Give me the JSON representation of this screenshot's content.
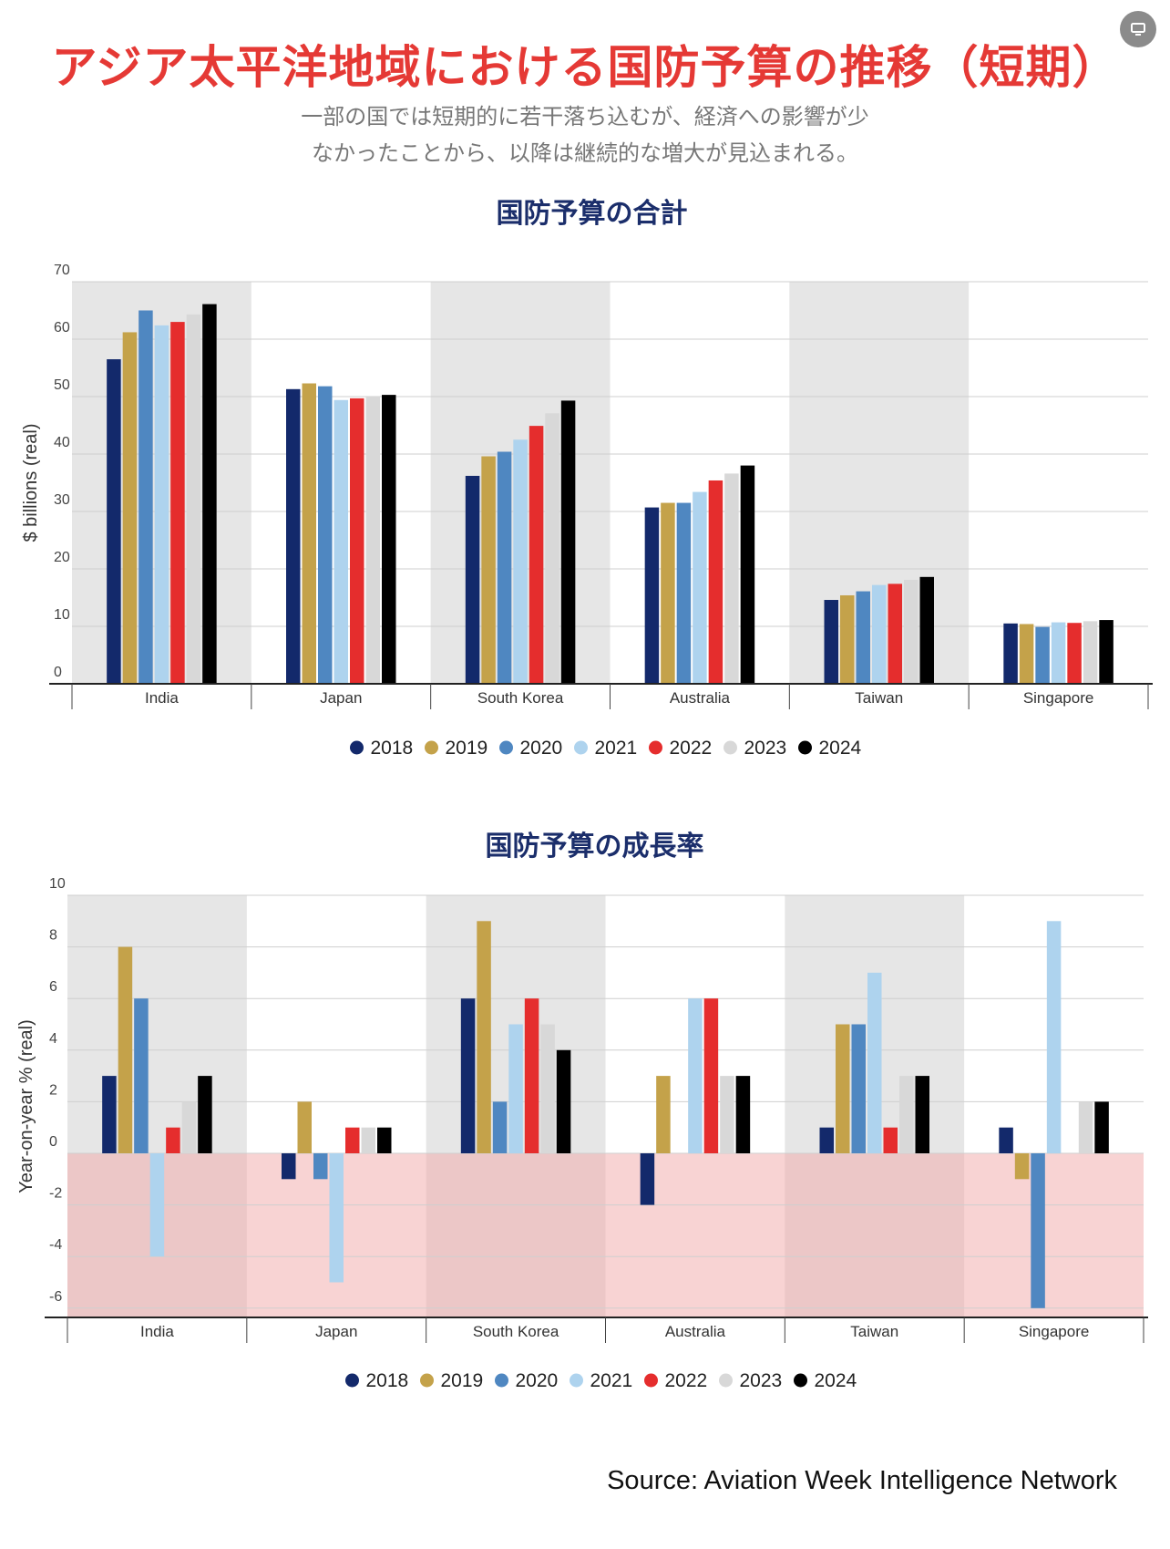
{
  "header": {
    "title": "アジア太平洋地域における国防予算の推移（短期）",
    "subtitle_line1": "一部の国では短期的に若干落ち込むが、経済への影響が少",
    "subtitle_line2": "なかったことから、以降は継続的な増大が見込まれる。"
  },
  "icons": {
    "top_right": "display-icon"
  },
  "colors": {
    "2018": "#13296b",
    "2019": "#c4a24a",
    "2020": "#4f87c1",
    "2021": "#aed3ee",
    "2022": "#e52d2d",
    "2023": "#d8d8d8",
    "2024": "#000000",
    "title": "#e53935",
    "chart_title": "#1b2e6b",
    "band": "#e6e6e6",
    "negative_zone": "#f9d4d4"
  },
  "chart_data": [
    {
      "type": "bar",
      "title": "国防予算の合計",
      "ylabel": "$ billions (real)",
      "xlabel": "",
      "ylim": [
        0,
        70
      ],
      "yticks": [
        0,
        10,
        20,
        30,
        40,
        50,
        60,
        70
      ],
      "grid": true,
      "legend_position": "bottom",
      "categories": [
        "India",
        "Japan",
        "South Korea",
        "Australia",
        "Taiwan",
        "Singapore"
      ],
      "series": [
        {
          "name": "2018",
          "values": [
            56.5,
            51.3,
            36.2,
            30.7,
            14.6,
            10.5
          ]
        },
        {
          "name": "2019",
          "values": [
            61.2,
            52.3,
            39.6,
            31.5,
            15.4,
            10.4
          ]
        },
        {
          "name": "2020",
          "values": [
            65.0,
            51.8,
            40.4,
            31.5,
            16.1,
            9.9
          ]
        },
        {
          "name": "2021",
          "values": [
            62.4,
            49.4,
            42.5,
            33.4,
            17.2,
            10.7
          ]
        },
        {
          "name": "2022",
          "values": [
            63.0,
            49.7,
            44.9,
            35.4,
            17.4,
            10.6
          ]
        },
        {
          "name": "2023",
          "values": [
            64.3,
            49.9,
            47.1,
            36.6,
            18.1,
            10.9
          ]
        },
        {
          "name": "2024",
          "values": [
            66.1,
            50.3,
            49.3,
            38.0,
            18.6,
            11.1
          ]
        }
      ]
    },
    {
      "type": "bar",
      "title": "国防予算の成長率",
      "ylabel": "Year-on-year % (real)",
      "xlabel": "",
      "ylim": [
        -6,
        10
      ],
      "yticks": [
        -6,
        -4,
        -2,
        0,
        2,
        4,
        6,
        8,
        10
      ],
      "grid": true,
      "legend_position": "bottom",
      "categories": [
        "India",
        "Japan",
        "South Korea",
        "Australia",
        "Taiwan",
        "Singapore"
      ],
      "series": [
        {
          "name": "2018",
          "values": [
            3,
            -1,
            6,
            -2,
            1,
            1
          ]
        },
        {
          "name": "2019",
          "values": [
            8,
            2,
            9,
            3,
            5,
            -1
          ]
        },
        {
          "name": "2020",
          "values": [
            6,
            -1,
            2,
            0,
            5,
            -6
          ]
        },
        {
          "name": "2021",
          "values": [
            -4,
            -5,
            5,
            6,
            7,
            9
          ]
        },
        {
          "name": "2022",
          "values": [
            1,
            1,
            6,
            6,
            1,
            0
          ]
        },
        {
          "name": "2023",
          "values": [
            2,
            1,
            5,
            3,
            3,
            2
          ]
        },
        {
          "name": "2024",
          "values": [
            3,
            1,
            4,
            3,
            3,
            2
          ]
        }
      ]
    }
  ],
  "source": "Source: Aviation Week Intelligence Network"
}
